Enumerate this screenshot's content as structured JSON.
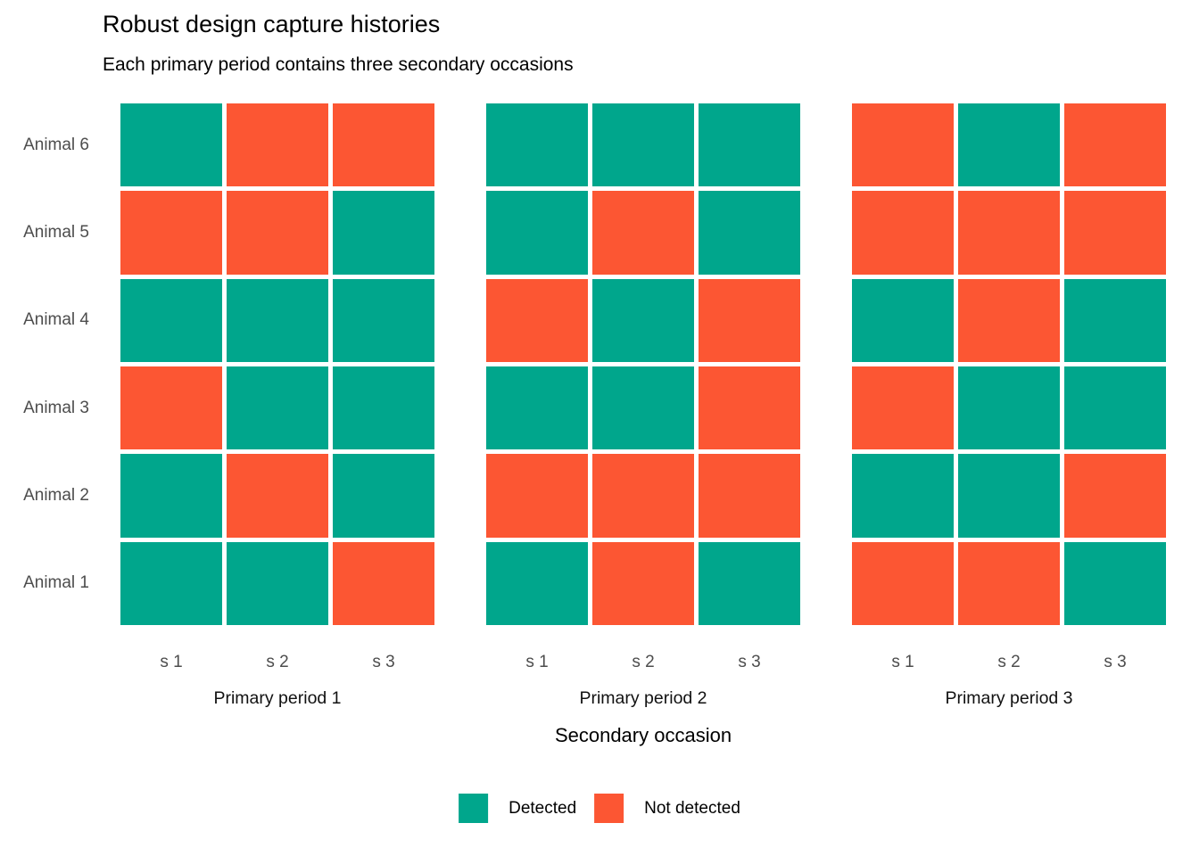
{
  "title": "Robust design capture histories",
  "subtitle": "Each primary period contains three secondary occasions",
  "chart_data": {
    "type": "heatmap",
    "title": "Robust design capture histories",
    "subtitle": "Each primary period contains three secondary occasions",
    "xlabel": "Secondary occasion",
    "ylabel": "",
    "grid": false,
    "legend_position": "bottom",
    "x_ticks": [
      "s 1",
      "s 2",
      "s 3"
    ],
    "y_labels_top_to_bottom": [
      "Animal 6",
      "Animal 5",
      "Animal 4",
      "Animal 3",
      "Animal 2",
      "Animal 1"
    ],
    "value_encoding": {
      "1": "Detected",
      "0": "Not detected"
    },
    "legend": [
      {
        "label": "Detected",
        "color": "#00A68C"
      },
      {
        "label": "Not detected",
        "color": "#FC5633"
      }
    ],
    "facets": [
      {
        "label": "Primary period 1",
        "rows_top_to_bottom": [
          [
            1,
            0,
            0
          ],
          [
            0,
            0,
            1
          ],
          [
            1,
            1,
            1
          ],
          [
            0,
            1,
            1
          ],
          [
            1,
            0,
            1
          ],
          [
            1,
            1,
            0
          ]
        ]
      },
      {
        "label": "Primary period 2",
        "rows_top_to_bottom": [
          [
            1,
            1,
            1
          ],
          [
            1,
            0,
            1
          ],
          [
            0,
            1,
            0
          ],
          [
            1,
            1,
            0
          ],
          [
            0,
            0,
            0
          ],
          [
            1,
            0,
            1
          ]
        ]
      },
      {
        "label": "Primary period 3",
        "rows_top_to_bottom": [
          [
            0,
            1,
            0
          ],
          [
            0,
            0,
            0
          ],
          [
            1,
            0,
            1
          ],
          [
            0,
            1,
            1
          ],
          [
            1,
            1,
            0
          ],
          [
            0,
            0,
            1
          ]
        ]
      }
    ]
  },
  "colors": {
    "detected": "#00A68C",
    "not_detected": "#FC5633",
    "axis_text": "#4D4D4D",
    "title_text": "#000000",
    "background": "#FFFFFF"
  }
}
